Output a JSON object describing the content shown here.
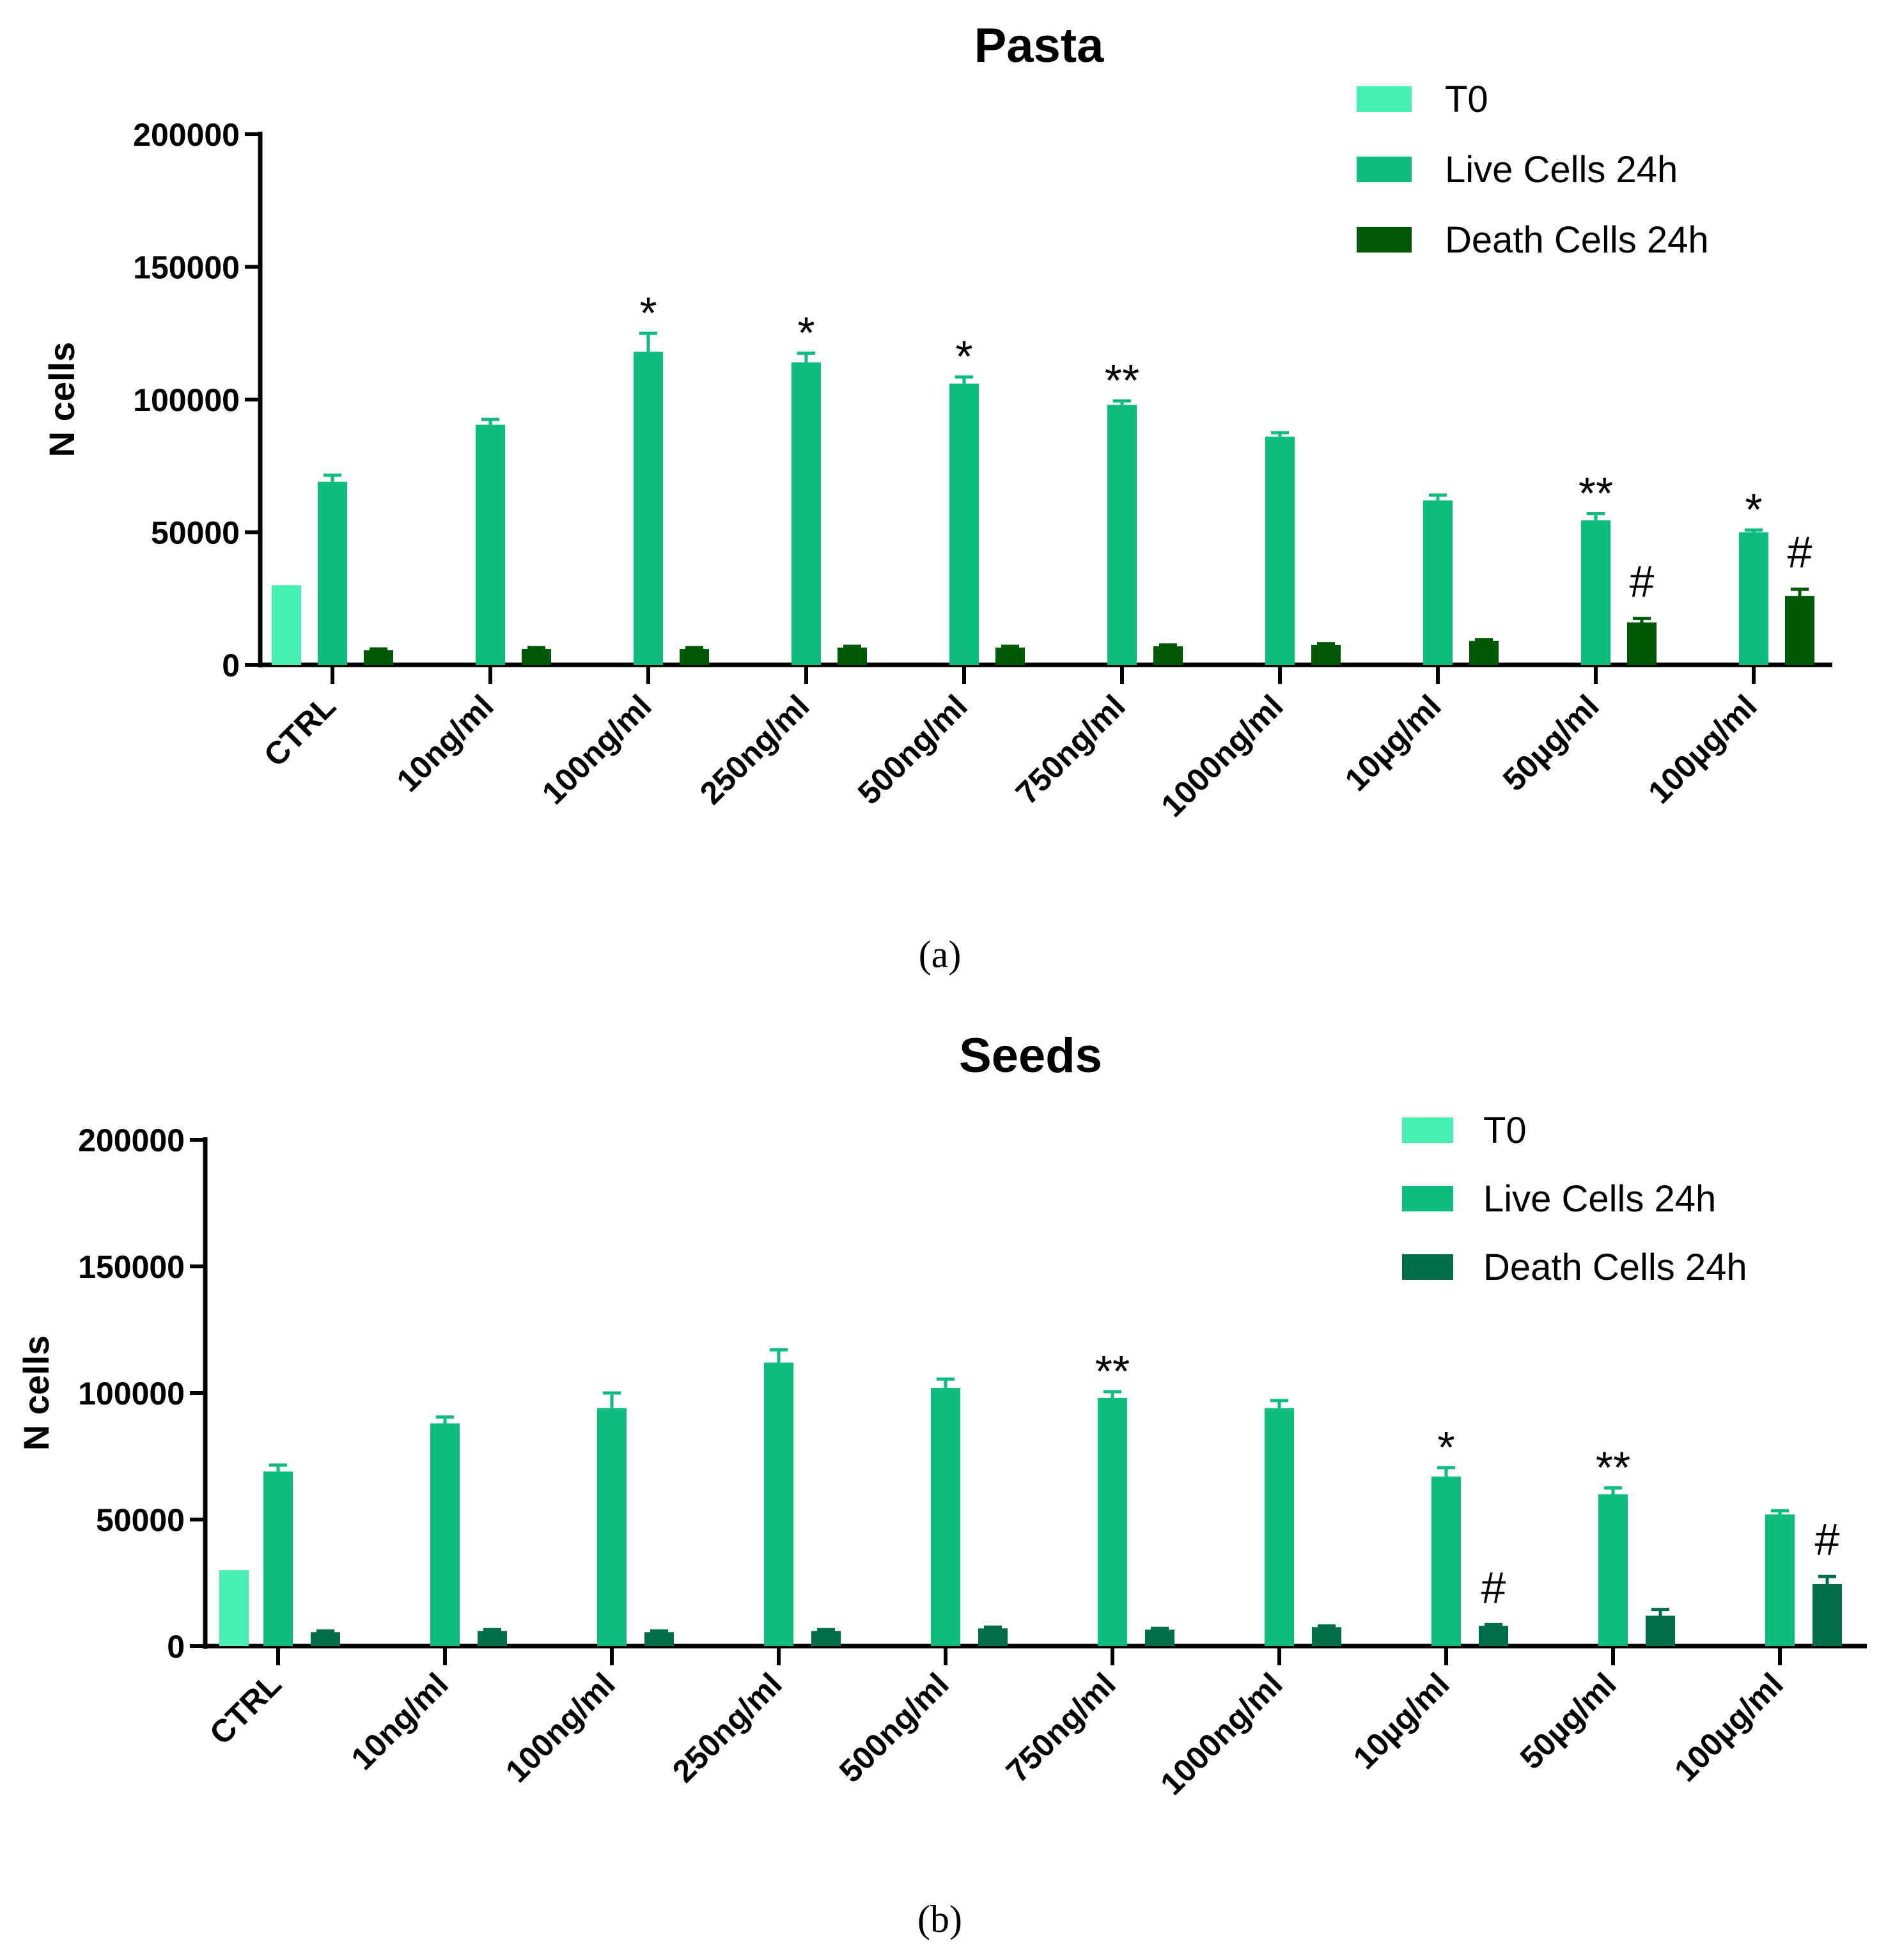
{
  "chart_data": [
    {
      "type": "bar",
      "title": "Pasta",
      "panel_label": "(a)",
      "xlabel": "",
      "ylabel": "N cells",
      "ylim": [
        0,
        200000
      ],
      "yticks": [
        "0",
        "50000",
        "100000",
        "150000",
        "200000"
      ],
      "categories": [
        "CTRL",
        "10ng/ml",
        "100ng/ml",
        "250ng/ml",
        "500ng/ml",
        "750ng/ml",
        "1000ng/ml",
        "10µg/ml",
        "50µg/ml",
        "100µg/ml"
      ],
      "legend_position": "top-right",
      "series": [
        {
          "name": "T0",
          "color": "#47f0b0",
          "values": [
            30000,
            null,
            null,
            null,
            null,
            null,
            null,
            null,
            null,
            null
          ],
          "errors": [
            0,
            null,
            null,
            null,
            null,
            null,
            null,
            null,
            null,
            null
          ]
        },
        {
          "name": "Live Cells 24h",
          "color": "#0dbd7c",
          "values": [
            69000,
            90500,
            118000,
            114000,
            106000,
            98000,
            86000,
            62000,
            54500,
            50000
          ],
          "errors": [
            2500,
            2000,
            7000,
            3500,
            2500,
            1500,
            1500,
            2000,
            2500,
            800
          ]
        },
        {
          "name": "Death Cells 24h",
          "color": "#005a05",
          "values": [
            5500,
            6000,
            6000,
            6500,
            6500,
            7000,
            7500,
            9000,
            16000,
            26000
          ],
          "errors": [
            500,
            500,
            500,
            500,
            500,
            500,
            500,
            500,
            1500,
            2500
          ]
        }
      ],
      "annotations": [
        {
          "category": "100ng/ml",
          "series": "Live Cells 24h",
          "text": "*"
        },
        {
          "category": "250ng/ml",
          "series": "Live Cells 24h",
          "text": "*"
        },
        {
          "category": "500ng/ml",
          "series": "Live Cells 24h",
          "text": "*"
        },
        {
          "category": "750ng/ml",
          "series": "Live Cells 24h",
          "text": "**"
        },
        {
          "category": "50µg/ml",
          "series": "Live Cells 24h",
          "text": "**"
        },
        {
          "category": "100µg/ml",
          "series": "Live Cells 24h",
          "text": "*"
        },
        {
          "category": "50µg/ml",
          "series": "Death Cells 24h",
          "text": "#"
        },
        {
          "category": "100µg/ml",
          "series": "Death Cells 24h",
          "text": "#"
        }
      ]
    },
    {
      "type": "bar",
      "title": "Seeds",
      "panel_label": "(b)",
      "xlabel": "",
      "ylabel": "N cells",
      "ylim": [
        0,
        200000
      ],
      "yticks": [
        "0",
        "50000",
        "100000",
        "150000",
        "200000"
      ],
      "categories": [
        "CTRL",
        "10ng/ml",
        "100ng/ml",
        "250ng/ml",
        "500ng/ml",
        "750ng/ml",
        "1000ng/ml",
        "10µg/ml",
        "50µg/ml",
        "100µg/ml"
      ],
      "legend_position": "top-right",
      "series": [
        {
          "name": "T0",
          "color": "#47f0b0",
          "values": [
            30000,
            null,
            null,
            null,
            null,
            null,
            null,
            null,
            null,
            null
          ],
          "errors": [
            0,
            null,
            null,
            null,
            null,
            null,
            null,
            null,
            null,
            null
          ]
        },
        {
          "name": "Live Cells 24h",
          "color": "#0dbd7c",
          "values": [
            69000,
            88000,
            94000,
            112000,
            102000,
            98000,
            94000,
            67000,
            60000,
            52000
          ],
          "errors": [
            2500,
            2500,
            6000,
            5000,
            3500,
            2500,
            3000,
            3500,
            2500,
            1500
          ]
        },
        {
          "name": "Death Cells 24h",
          "color": "#006f47",
          "values": [
            5500,
            6000,
            5500,
            6000,
            7000,
            6500,
            7500,
            8000,
            12000,
            24500
          ],
          "errors": [
            500,
            500,
            500,
            500,
            500,
            500,
            500,
            500,
            2500,
            3000
          ]
        }
      ],
      "annotations": [
        {
          "category": "750ng/ml",
          "series": "Live Cells 24h",
          "text": "**"
        },
        {
          "category": "10µg/ml",
          "series": "Live Cells 24h",
          "text": "*"
        },
        {
          "category": "50µg/ml",
          "series": "Live Cells 24h",
          "text": "**"
        },
        {
          "category": "10µg/ml",
          "series": "Death Cells 24h",
          "text": "#"
        },
        {
          "category": "100µg/ml",
          "series": "Death Cells 24h",
          "text": "#"
        }
      ]
    }
  ]
}
